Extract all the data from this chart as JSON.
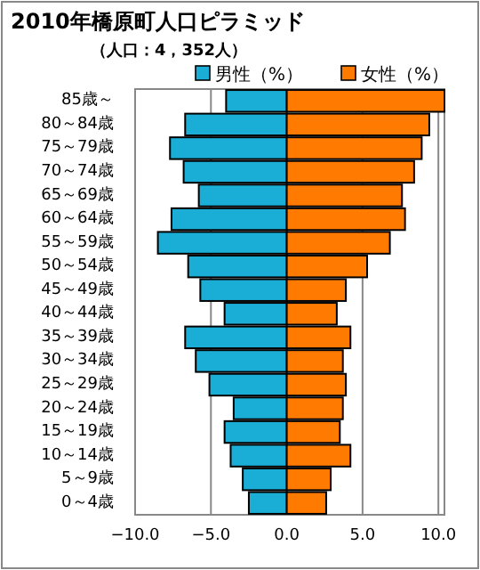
{
  "chart_data": {
    "type": "bar",
    "title": "2010年橋原町人口ピラミッド",
    "subtitle": "（人口：4，352人）",
    "orientation": "horizontal",
    "stacked": true,
    "categories": [
      "85歳～",
      "80～84歳",
      "75～79歳",
      "70～74歳",
      "65～69歳",
      "60～64歳",
      "55～59歳",
      "50～54歳",
      "45～49歳",
      "40～44歳",
      "35～39歳",
      "30～34歳",
      "25～29歳",
      "20～24歳",
      "15～19歳",
      "10～14歳",
      "5～9歳",
      "0～4歳"
    ],
    "series": [
      {
        "name": "男性（%）",
        "color": "#1aaed6",
        "values": [
          -4.0,
          -6.7,
          -7.7,
          -6.8,
          -5.8,
          -7.6,
          -8.5,
          -6.5,
          -5.7,
          -4.1,
          -6.7,
          -6.0,
          -5.1,
          -3.5,
          -4.1,
          -3.7,
          -2.9,
          -2.5
        ]
      },
      {
        "name": "女性（%）",
        "color": "#ff7a00",
        "values": [
          10.4,
          9.4,
          8.9,
          8.4,
          7.6,
          7.8,
          6.8,
          5.3,
          3.9,
          3.3,
          4.2,
          3.7,
          3.9,
          3.7,
          3.5,
          4.2,
          2.9,
          2.6
        ]
      }
    ],
    "xlim": [
      -10,
      10.4
    ],
    "xticks": [
      {
        "value": -10,
        "label": "−10.0"
      },
      {
        "value": -5,
        "label": "−5.0"
      },
      {
        "value": 0,
        "label": "0.0"
      },
      {
        "value": 5,
        "label": "5.0"
      },
      {
        "value": 10,
        "label": "10.0"
      }
    ],
    "grid": "x",
    "legend": "top right"
  }
}
